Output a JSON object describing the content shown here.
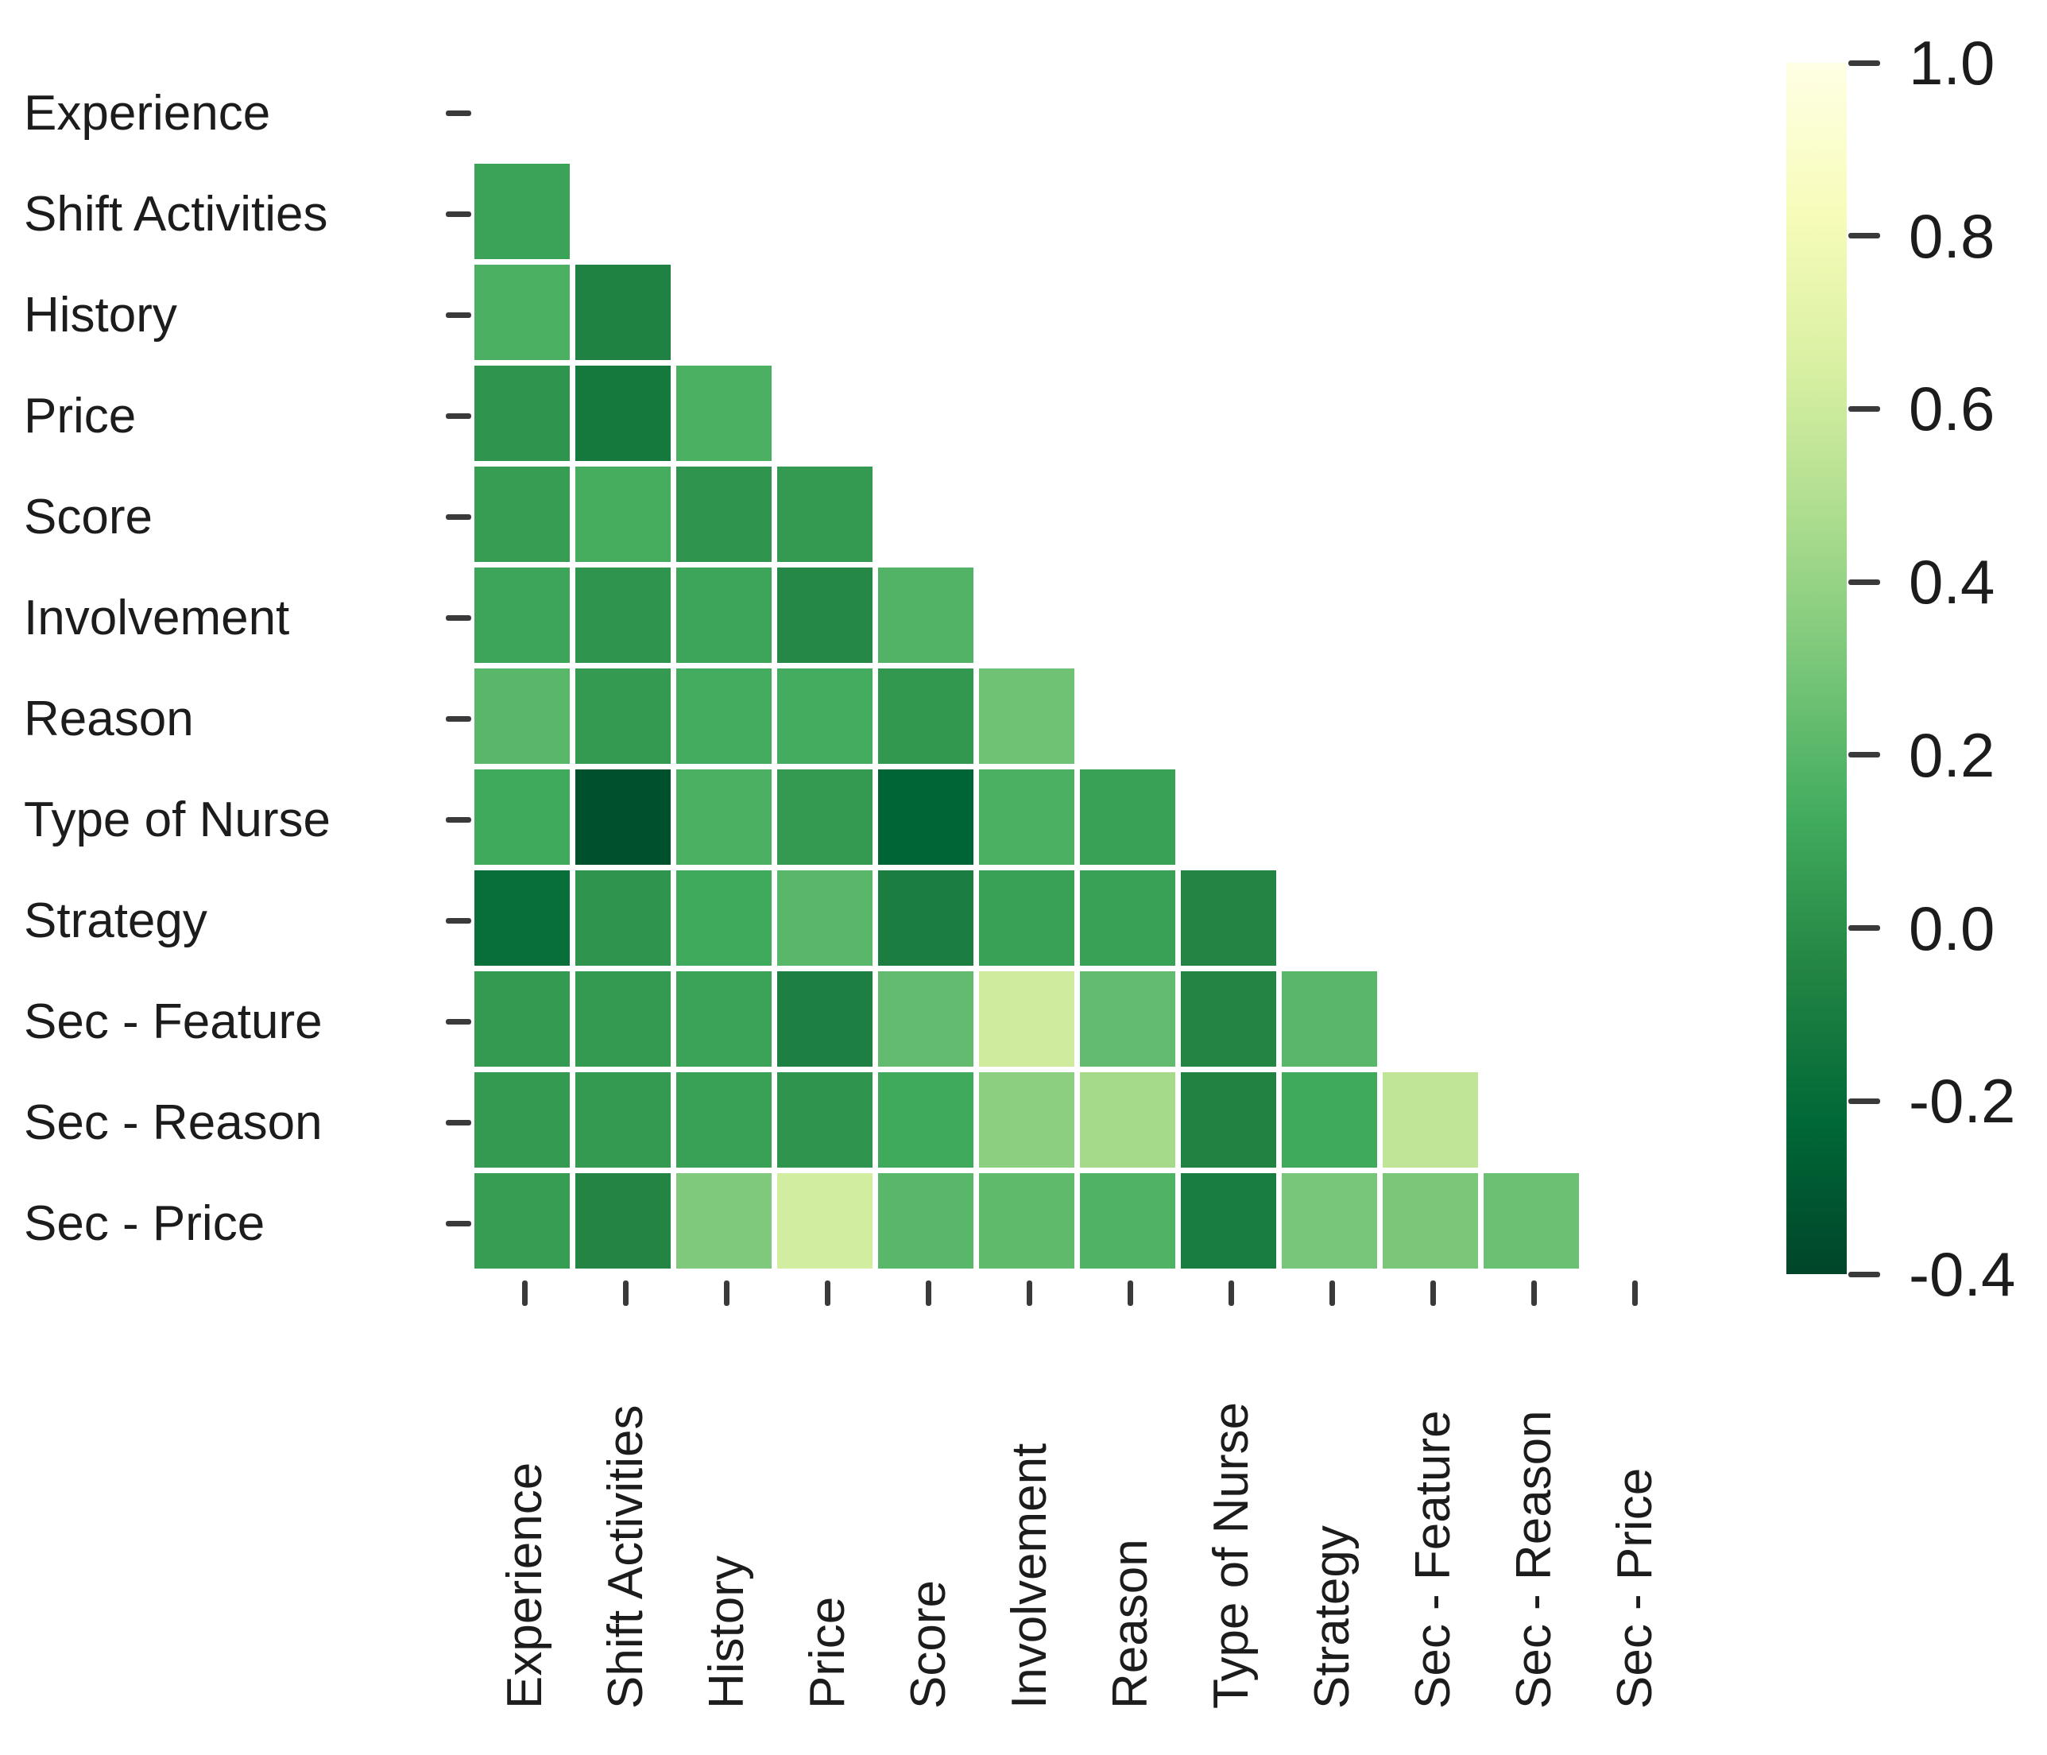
{
  "figure": {
    "background": "#ffffff",
    "text_color": "#1c1c1c",
    "tick_color": "#3a3a3a"
  },
  "chart_data": {
    "type": "heatmap",
    "subtype": "correlation-matrix-lower-triangle",
    "title": "",
    "grid": "off",
    "diagonal_shown": false,
    "variables": [
      "Experience",
      "Shift Activities",
      "History",
      "Price",
      "Score",
      "Involvement",
      "Reason",
      "Type of Nurse",
      "Strategy",
      "Sec - Feature",
      "Sec - Reason",
      "Sec - Price"
    ],
    "x_tick_labels": [
      "Experience",
      "Shift Activities",
      "History",
      "Price",
      "Score",
      "Involvement",
      "Reason",
      "Type of Nurse",
      "Strategy",
      "Sec - Feature",
      "Sec - Reason",
      "Sec - Price"
    ],
    "y_tick_labels": [
      "Experience",
      "Shift Activities",
      "History",
      "Price",
      "Score",
      "Involvement",
      "Reason",
      "Type of Nurse",
      "Strategy",
      "Sec - Feature",
      "Sec - Reason",
      "Sec - Price"
    ],
    "lower_triangle_rows": [
      {
        "row": "Shift Activities",
        "values": [
          0.09
        ]
      },
      {
        "row": "History",
        "values": [
          0.16,
          -0.07
        ]
      },
      {
        "row": "Price",
        "values": [
          0.02,
          -0.12,
          0.16
        ]
      },
      {
        "row": "Score",
        "values": [
          0.06,
          0.14,
          0.02,
          0.05
        ]
      },
      {
        "row": "Involvement",
        "values": [
          0.1,
          0.02,
          0.1,
          -0.03,
          0.18
        ]
      },
      {
        "row": "Reason",
        "values": [
          0.2,
          0.05,
          0.13,
          0.13,
          0.04,
          0.27
        ]
      },
      {
        "row": "Type of Nurse",
        "values": [
          0.12,
          -0.35,
          0.16,
          0.05,
          -0.24,
          0.16,
          0.08
        ]
      },
      {
        "row": "Strategy",
        "values": [
          -0.18,
          0.02,
          0.12,
          0.2,
          -0.09,
          0.08,
          0.08,
          -0.05
        ]
      },
      {
        "row": "Sec - Feature",
        "values": [
          0.05,
          0.05,
          0.09,
          -0.08,
          0.23,
          0.61,
          0.23,
          -0.05,
          0.2
        ]
      },
      {
        "row": "Sec - Reason",
        "values": [
          0.05,
          0.05,
          0.08,
          0.02,
          0.12,
          0.37,
          0.45,
          -0.06,
          0.12,
          0.55
        ]
      },
      {
        "row": "Sec - Price",
        "values": [
          0.06,
          -0.05,
          0.32,
          0.62,
          0.2,
          0.22,
          0.17,
          -0.1,
          0.3,
          0.31,
          0.26
        ]
      }
    ],
    "value_domain": [
      -0.4,
      1.0
    ],
    "colormap": {
      "description": "light yellow = high, dark green = low (YlGn reversed)",
      "stops": [
        {
          "value": 1.0,
          "color": "#ffffe5"
        },
        {
          "value": 0.825,
          "color": "#f7fcb9"
        },
        {
          "value": 0.65,
          "color": "#d9f0a3"
        },
        {
          "value": 0.475,
          "color": "#addd8e"
        },
        {
          "value": 0.3,
          "color": "#78c679"
        },
        {
          "value": 0.125,
          "color": "#41ab5d"
        },
        {
          "value": -0.05,
          "color": "#238443"
        },
        {
          "value": -0.225,
          "color": "#006837"
        },
        {
          "value": -0.4,
          "color": "#004529"
        }
      ]
    },
    "colorbar": {
      "position": "right",
      "tick_labels": [
        "1.0",
        "0.8",
        "0.6",
        "0.4",
        "0.2",
        "0.0",
        "-0.2",
        "-0.4"
      ],
      "tick_values": [
        1.0,
        0.8,
        0.6,
        0.4,
        0.2,
        0.0,
        -0.2,
        -0.4
      ]
    }
  }
}
